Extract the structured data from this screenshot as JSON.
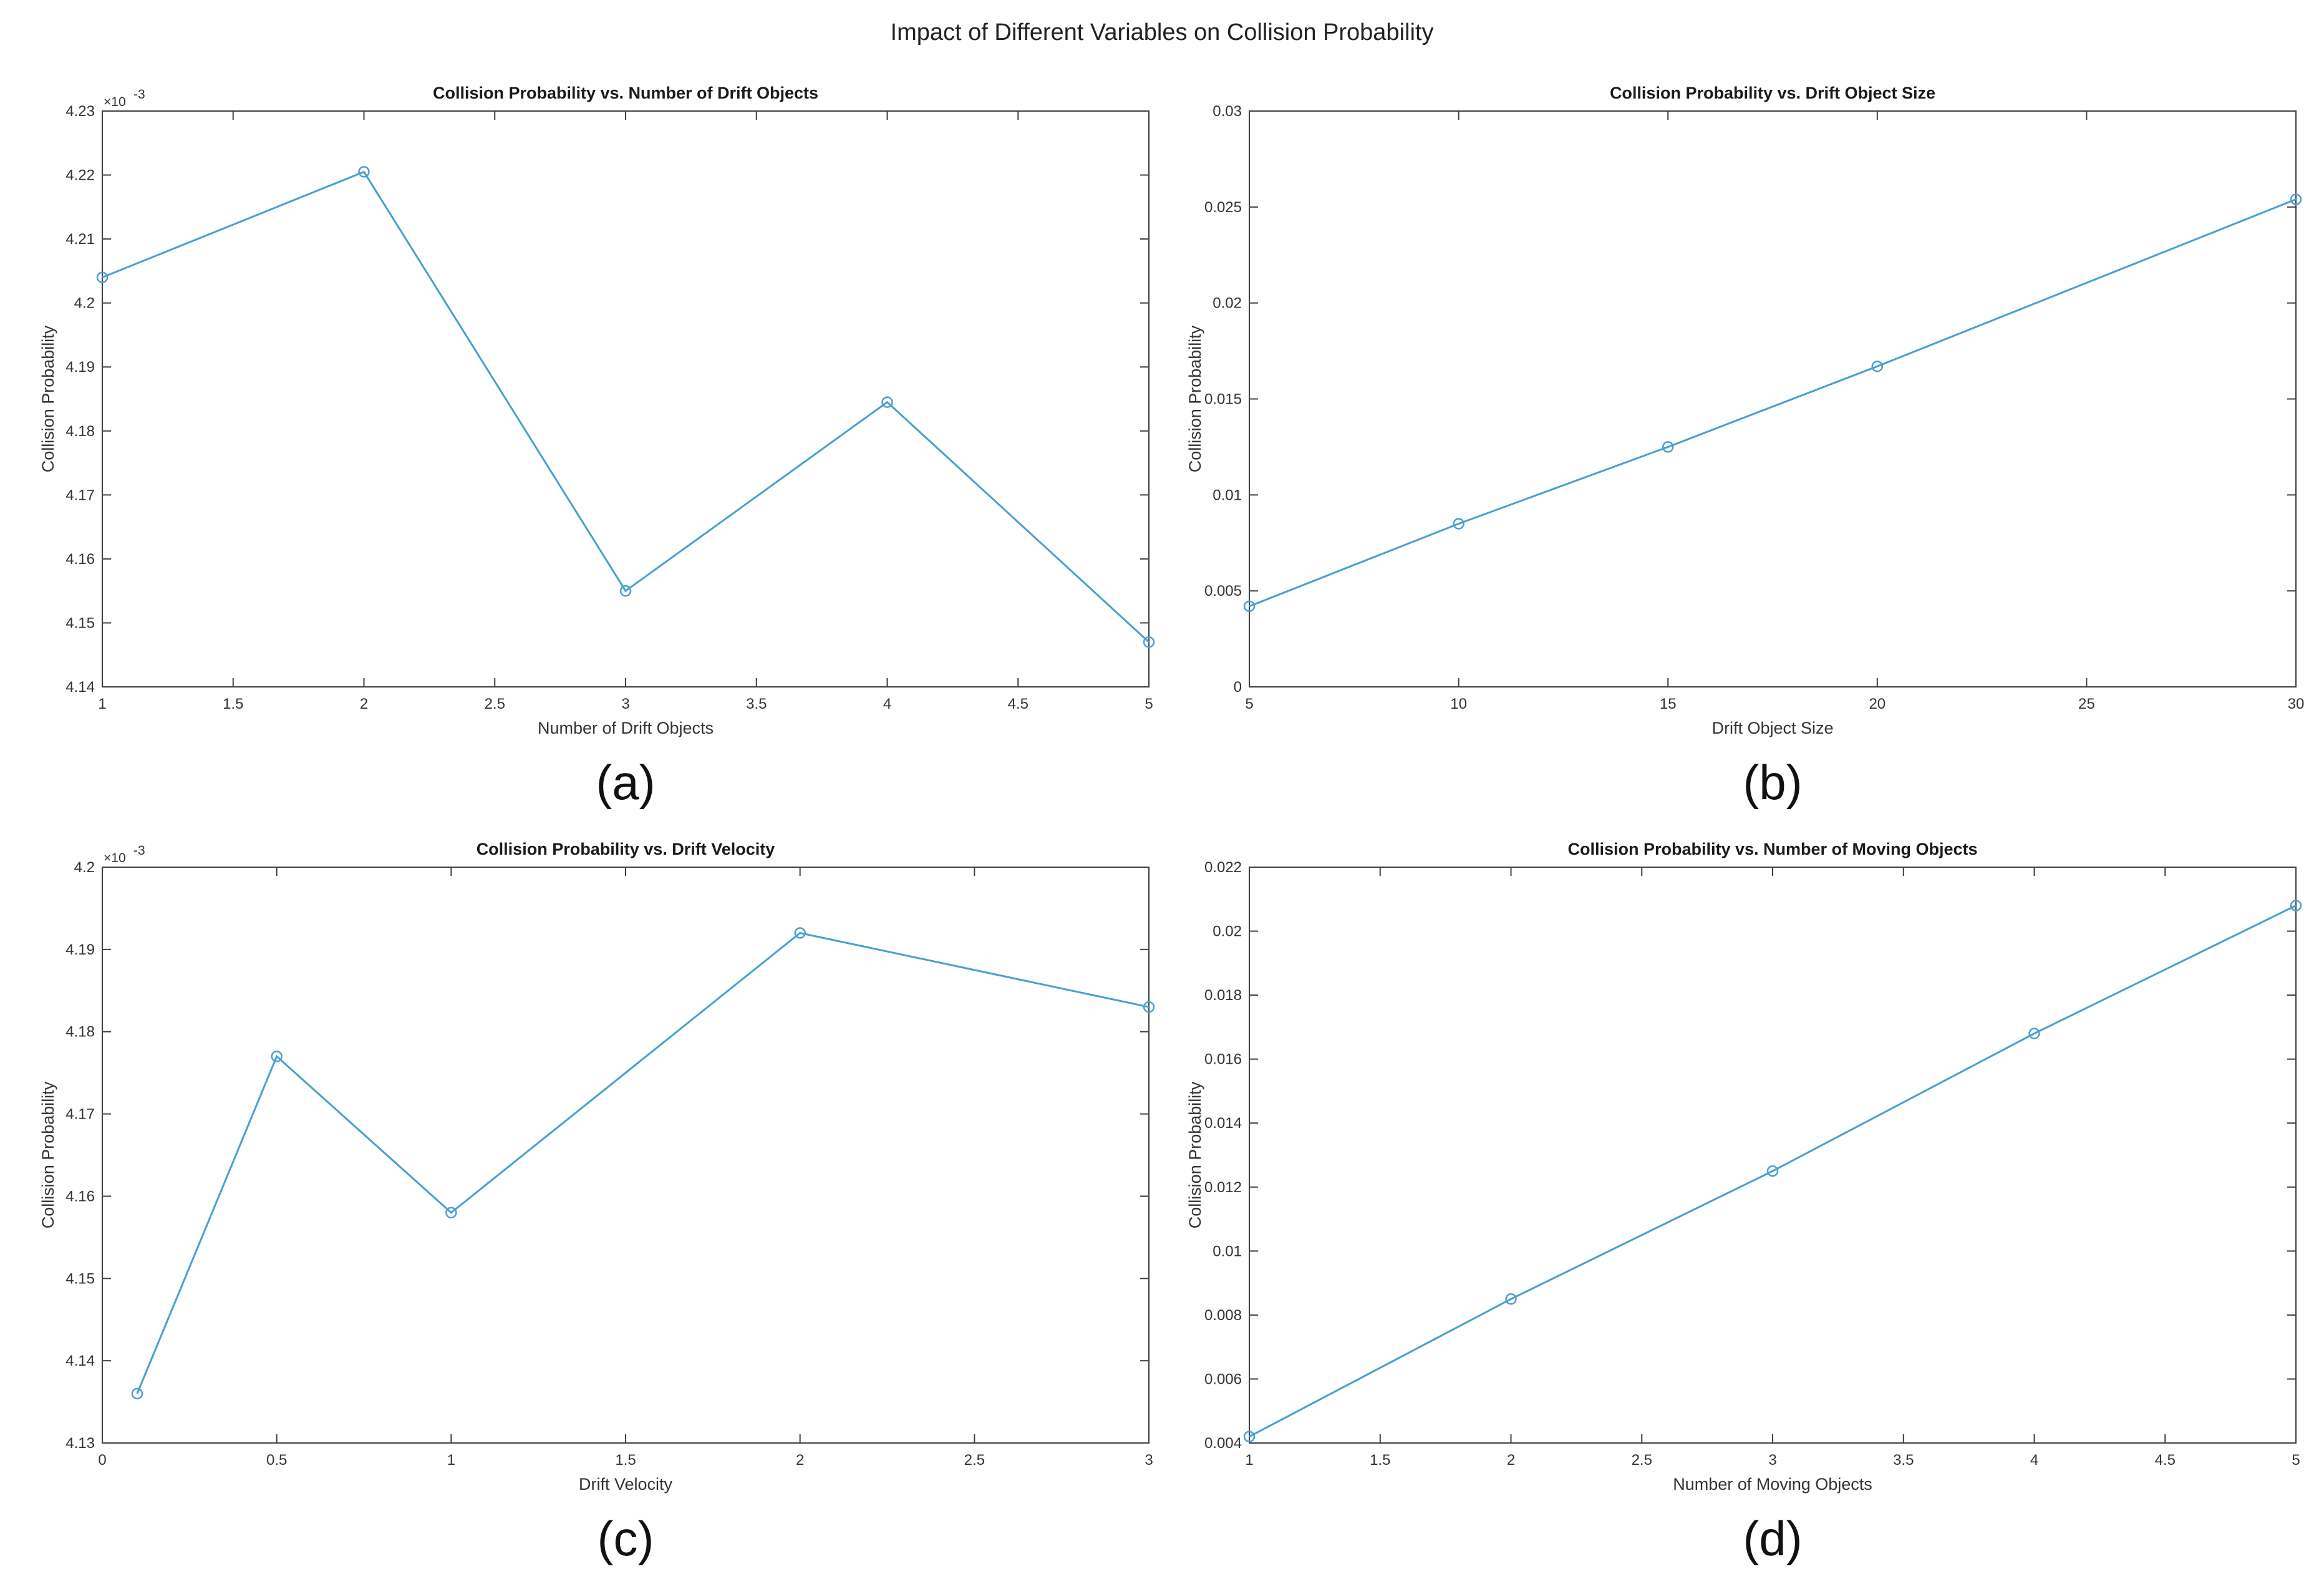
{
  "figure_title": "Impact of Different Variables on Collision Probability",
  "colors": {
    "line": "#4a9fd0",
    "axis": "#3f3f3f",
    "background": "#ffffff"
  },
  "chart_data": [
    {
      "type": "line",
      "panel_label": "(a)",
      "title": "Collision Probability vs. Number of Drift Objects",
      "xlabel": "Number of Drift Objects",
      "ylabel": "Collision Probability",
      "y_exponent": "×10",
      "y_exponent_power": "-3",
      "x": [
        1,
        2,
        3,
        4,
        5
      ],
      "y": [
        0.004204,
        0.0042205,
        0.004155,
        0.0041845,
        0.004147
      ],
      "xlim": [
        1,
        5
      ],
      "ylim": [
        0.00414,
        0.00423
      ],
      "xticks": [
        1,
        1.5,
        2,
        2.5,
        3,
        3.5,
        4,
        4.5,
        5
      ],
      "xtick_labels": [
        "1",
        "1.5",
        "2",
        "2.5",
        "3",
        "3.5",
        "4",
        "4.5",
        "5"
      ],
      "yticks": [
        0.00414,
        0.00415,
        0.00416,
        0.00417,
        0.00418,
        0.00419,
        0.0042,
        0.00421,
        0.00422,
        0.00423
      ],
      "ytick_labels": [
        "4.14",
        "4.15",
        "4.16",
        "4.17",
        "4.18",
        "4.19",
        "4.2",
        "4.21",
        "4.22",
        "4.23"
      ],
      "marker": "circle",
      "grid": false
    },
    {
      "type": "line",
      "panel_label": "(b)",
      "title": "Collision Probability vs. Drift Object Size",
      "xlabel": "Drift Object Size",
      "ylabel": "Collision Probability",
      "y_exponent": "",
      "y_exponent_power": "",
      "x": [
        5,
        10,
        15,
        20,
        30
      ],
      "y": [
        0.0042,
        0.0085,
        0.0125,
        0.0167,
        0.0254
      ],
      "xlim": [
        5,
        30
      ],
      "ylim": [
        0,
        0.03
      ],
      "xticks": [
        5,
        10,
        15,
        20,
        25,
        30
      ],
      "xtick_labels": [
        "5",
        "10",
        "15",
        "20",
        "25",
        "30"
      ],
      "yticks": [
        0,
        0.005,
        0.01,
        0.015,
        0.02,
        0.025,
        0.03
      ],
      "ytick_labels": [
        "0",
        "0.005",
        "0.01",
        "0.015",
        "0.02",
        "0.025",
        "0.03"
      ],
      "marker": "circle",
      "grid": false
    },
    {
      "type": "line",
      "panel_label": "(c)",
      "title": "Collision Probability vs. Drift Velocity",
      "xlabel": "Drift Velocity",
      "ylabel": "Collision Probability",
      "y_exponent": "×10",
      "y_exponent_power": "-3",
      "x": [
        0.1,
        0.5,
        1,
        2,
        3
      ],
      "y": [
        0.004136,
        0.004177,
        0.004158,
        0.004192,
        0.004183
      ],
      "xlim": [
        0,
        3
      ],
      "ylim": [
        0.00413,
        0.0042
      ],
      "xticks": [
        0,
        0.5,
        1,
        1.5,
        2,
        2.5,
        3
      ],
      "xtick_labels": [
        "0",
        "0.5",
        "1",
        "1.5",
        "2",
        "2.5",
        "3"
      ],
      "yticks": [
        0.00413,
        0.00414,
        0.00415,
        0.00416,
        0.00417,
        0.00418,
        0.00419,
        0.0042
      ],
      "ytick_labels": [
        "4.13",
        "4.14",
        "4.15",
        "4.16",
        "4.17",
        "4.18",
        "4.19",
        "4.2"
      ],
      "marker": "circle",
      "grid": false
    },
    {
      "type": "line",
      "panel_label": "(d)",
      "title": "Collision Probability vs. Number of Moving Objects",
      "xlabel": "Number of Moving Objects",
      "ylabel": "Collision Probability",
      "y_exponent": "",
      "y_exponent_power": "",
      "x": [
        1,
        2,
        3,
        4,
        5
      ],
      "y": [
        0.0042,
        0.0085,
        0.0125,
        0.0168,
        0.0208
      ],
      "xlim": [
        1,
        5
      ],
      "ylim": [
        0.004,
        0.022
      ],
      "xticks": [
        1,
        1.5,
        2,
        2.5,
        3,
        3.5,
        4,
        4.5,
        5
      ],
      "xtick_labels": [
        "1",
        "1.5",
        "2",
        "2.5",
        "3",
        "3.5",
        "4",
        "4.5",
        "5"
      ],
      "yticks": [
        0.004,
        0.006,
        0.008,
        0.01,
        0.012,
        0.014,
        0.016,
        0.018,
        0.02,
        0.022
      ],
      "ytick_labels": [
        "0.004",
        "0.006",
        "0.008",
        "0.01",
        "0.012",
        "0.014",
        "0.016",
        "0.018",
        "0.02",
        "0.022"
      ],
      "marker": "circle",
      "grid": false
    }
  ]
}
